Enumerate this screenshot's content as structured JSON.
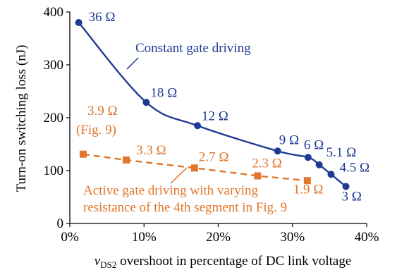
{
  "chart_data": {
    "type": "line",
    "xlabel_var": "v",
    "xlabel_sub": "DS2",
    "xlabel_rest": " overshoot in percentage of DC link voltage",
    "ylabel": "Turn-on switching loss (nJ)",
    "xlim": [
      0,
      40
    ],
    "ylim": [
      0,
      400
    ],
    "xticks": [
      0,
      10,
      20,
      30,
      40
    ],
    "xtick_labels": [
      "0%",
      "10%",
      "20%",
      "30%",
      "40%"
    ],
    "yticks": [
      0,
      100,
      200,
      300,
      400
    ],
    "ytick_labels": [
      "0",
      "100",
      "200",
      "300",
      "400"
    ],
    "grid": false,
    "series": [
      {
        "name": "Constant gate driving",
        "color": "#1f3a93",
        "style": "solid",
        "marker": "circle",
        "x": [
          1.2,
          10.3,
          17.2,
          28.0,
          32.1,
          33.6,
          35.2,
          37.2
        ],
        "y": [
          380,
          229,
          185,
          137,
          125,
          111,
          93,
          70
        ],
        "point_labels": [
          "36 Ω",
          "18 Ω",
          "12 Ω",
          "9 Ω",
          "6 Ω",
          "5.1 Ω",
          "4.5 Ω",
          "3 Ω"
        ]
      },
      {
        "name": "Active gate driving with varying resistance of the 4th segment in Fig. 9",
        "name_line1": "Active gate driving with varying",
        "name_line2": "resistance of the 4th segment in Fig. 9",
        "color": "#e0762b",
        "style": "dashed",
        "marker": "square",
        "x": [
          1.8,
          7.6,
          16.8,
          25.3,
          32.0
        ],
        "y": [
          131,
          120,
          105,
          90,
          81
        ],
        "point_labels": [
          "3.9 Ω",
          "3.3 Ω",
          "2.7 Ω",
          "2.3 Ω",
          "1.9 Ω"
        ],
        "extra_label": "(Fig. 9)"
      }
    ]
  }
}
